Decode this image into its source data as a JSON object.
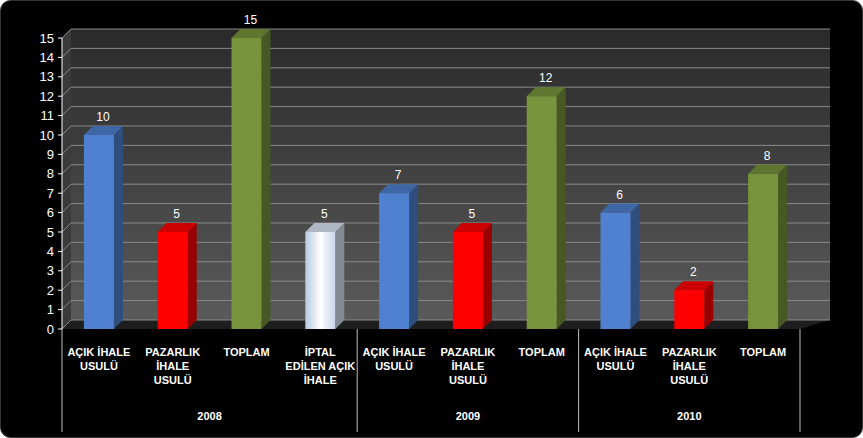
{
  "chart_data": {
    "type": "bar",
    "categories": [
      "AÇIK İHALE USULÜ",
      "PAZARLIK İHALE USULÜ",
      "TOPLAM",
      "İPTAL EDİLEN AÇIK İHALE",
      "AÇIK İHALE USULÜ",
      "PAZARLIK İHALE USULÜ",
      "TOPLAM",
      "AÇIK İHALE USULÜ",
      "PAZARLIK İHALE USULÜ",
      "TOPLAM"
    ],
    "groups": [
      "2008",
      "2008",
      "2008",
      "2008",
      "2009",
      "2009",
      "2009",
      "2010",
      "2010",
      "2010"
    ],
    "values": [
      10,
      5,
      15,
      5,
      7,
      5,
      12,
      6,
      2,
      8
    ],
    "colors": [
      "#4f81d0",
      "#ff0000",
      "#77933c",
      "#dce6f4",
      "#4f81d0",
      "#ff0000",
      "#77933c",
      "#4f81d0",
      "#ff0000",
      "#77933c"
    ],
    "ylim": [
      0,
      15
    ],
    "yticks": [
      0,
      1,
      2,
      3,
      4,
      5,
      6,
      7,
      8,
      9,
      10,
      11,
      12,
      13,
      14,
      15
    ],
    "grid": true,
    "data_labels": true
  }
}
